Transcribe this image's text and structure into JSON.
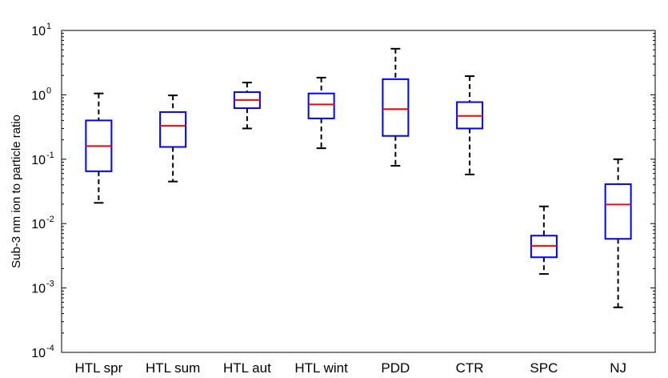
{
  "chart_data": {
    "type": "boxplot",
    "title": "",
    "xlabel": "",
    "ylabel": "Sub-3 nm ion to particle ratio",
    "yscale": "log",
    "ylim": [
      0.0001,
      10
    ],
    "yticks": [
      {
        "base": "10",
        "exp": "-4"
      },
      {
        "base": "10",
        "exp": "-3"
      },
      {
        "base": "10",
        "exp": "-2"
      },
      {
        "base": "10",
        "exp": "-1"
      },
      {
        "base": "10",
        "exp": "0"
      },
      {
        "base": "10",
        "exp": "1"
      }
    ],
    "grid": false,
    "colors": {
      "box": "#0000ff",
      "median": "#ff0000",
      "whisker": "#000000",
      "axis": "#000000"
    },
    "categories": [
      "HTL spr",
      "HTL sum",
      "HTL aut",
      "HTL wint",
      "PDD",
      "CTR",
      "SPC",
      "NJ"
    ],
    "boxes": [
      {
        "whisker_low": 0.021,
        "q1": 0.065,
        "median": 0.16,
        "q3": 0.4,
        "whisker_high": 1.05
      },
      {
        "whisker_low": 0.045,
        "q1": 0.155,
        "median": 0.33,
        "q3": 0.54,
        "whisker_high": 0.98
      },
      {
        "whisker_low": 0.3,
        "q1": 0.62,
        "median": 0.83,
        "q3": 1.1,
        "whisker_high": 1.55
      },
      {
        "whisker_low": 0.148,
        "q1": 0.43,
        "median": 0.71,
        "q3": 1.05,
        "whisker_high": 1.85
      },
      {
        "whisker_low": 0.079,
        "q1": 0.23,
        "median": 0.6,
        "q3": 1.75,
        "whisker_high": 5.2
      },
      {
        "whisker_low": 0.058,
        "q1": 0.3,
        "median": 0.47,
        "q3": 0.77,
        "whisker_high": 1.95
      },
      {
        "whisker_low": 0.00165,
        "q1": 0.003,
        "median": 0.0045,
        "q3": 0.0065,
        "whisker_high": 0.0185
      },
      {
        "whisker_low": 0.0005,
        "q1": 0.0058,
        "median": 0.0198,
        "q3": 0.041,
        "whisker_high": 0.1
      }
    ]
  }
}
